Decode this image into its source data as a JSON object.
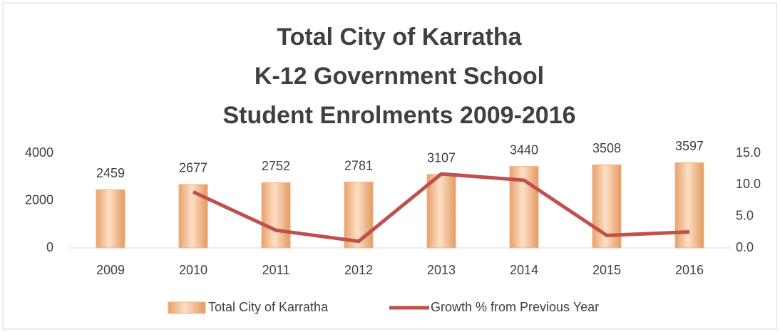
{
  "chart_data": {
    "type": "bar_line",
    "title": [
      "Total City of Karratha",
      "K-12 Government School",
      "Student Enrolments 2009-2016"
    ],
    "categories": [
      "2009",
      "2010",
      "2011",
      "2012",
      "2013",
      "2014",
      "2015",
      "2016"
    ],
    "series": [
      {
        "name": "Total City of Karratha",
        "type": "bar",
        "color": "#f4b183",
        "values": [
          2459,
          2677,
          2752,
          2781,
          3107,
          3440,
          3508,
          3597
        ]
      },
      {
        "name": "Growth % from Previous Year",
        "type": "line",
        "axis": "y2",
        "color": "#c0504d",
        "values": [
          null,
          8.87,
          2.8,
          1.05,
          11.72,
          10.72,
          1.98,
          2.54
        ]
      }
    ],
    "ylim": [
      0,
      4000
    ],
    "yticks": [
      0,
      2000,
      4000
    ],
    "y2lim": [
      0,
      15
    ],
    "y2ticks": [
      {
        "value": 0,
        "label": "0.0"
      },
      {
        "value": 5,
        "label": "5.0"
      },
      {
        "value": 10,
        "label": "10.0"
      },
      {
        "value": 15,
        "label": "15.0"
      }
    ],
    "legend": "bottom"
  }
}
